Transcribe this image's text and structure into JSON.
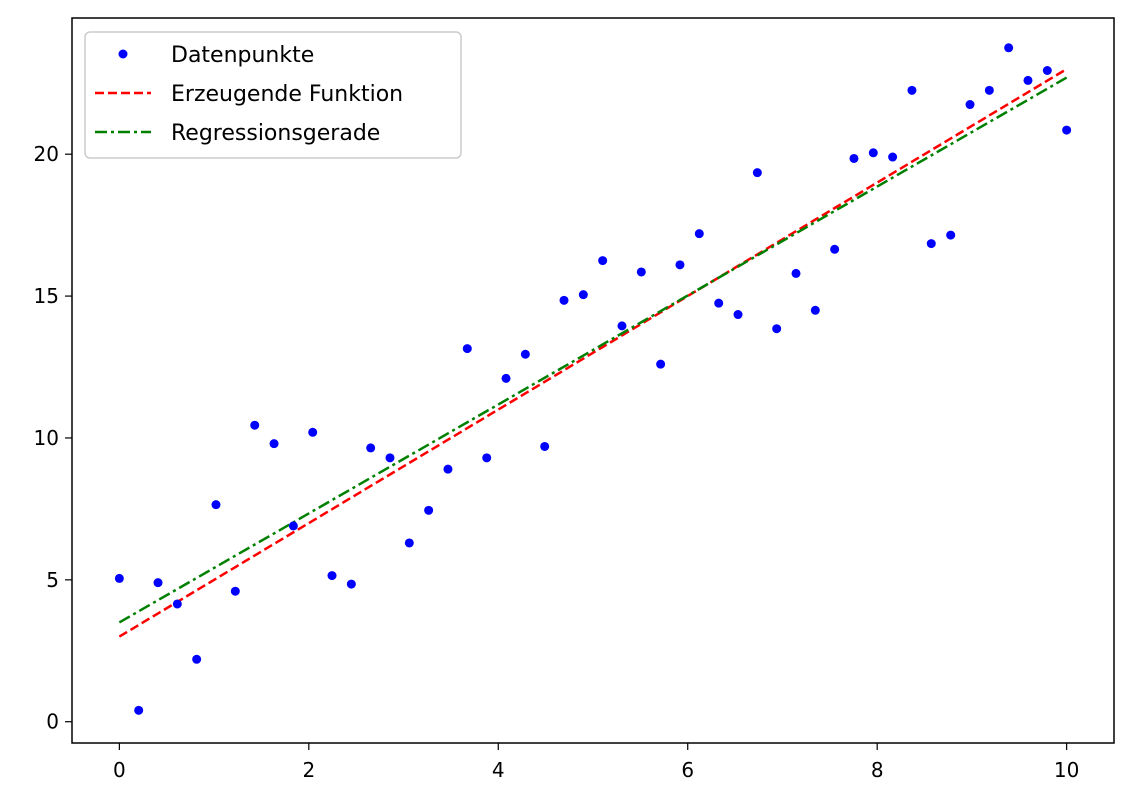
{
  "chart_data": {
    "type": "scatter",
    "xlim": [
      -0.5,
      10.5
    ],
    "ylim": [
      -0.75,
      24.8
    ],
    "xticks": [
      0,
      2,
      4,
      6,
      8,
      10
    ],
    "yticks": [
      0,
      5,
      10,
      15,
      20
    ],
    "grid": false,
    "legend_position": "top-left",
    "series": [
      {
        "name": "Datenpunkte",
        "kind": "points",
        "color": "#0000ff",
        "x": [
          0.0,
          0.204,
          0.408,
          0.612,
          0.816,
          1.02,
          1.224,
          1.429,
          1.633,
          1.837,
          2.041,
          2.245,
          2.449,
          2.653,
          2.857,
          3.061,
          3.265,
          3.469,
          3.673,
          3.878,
          4.082,
          4.286,
          4.49,
          4.694,
          4.898,
          5.102,
          5.306,
          5.51,
          5.714,
          5.918,
          6.122,
          6.327,
          6.531,
          6.735,
          6.939,
          7.143,
          7.347,
          7.551,
          7.755,
          7.959,
          8.163,
          8.367,
          8.571,
          8.776,
          8.98,
          9.184,
          9.388,
          9.592,
          9.796,
          10.0
        ],
        "y": [
          5.05,
          0.4,
          4.9,
          4.15,
          2.2,
          7.65,
          4.6,
          10.45,
          9.8,
          6.9,
          10.2,
          5.15,
          4.85,
          9.65,
          9.3,
          6.3,
          7.45,
          8.9,
          13.15,
          9.3,
          12.1,
          12.95,
          9.7,
          14.85,
          15.05,
          16.25,
          13.95,
          15.85,
          12.6,
          16.1,
          17.2,
          14.75,
          14.35,
          19.35,
          13.85,
          15.8,
          14.5,
          16.65,
          19.85,
          20.05,
          19.9,
          22.25,
          16.85,
          17.15,
          21.75,
          22.25,
          23.75,
          22.6,
          22.95,
          20.85
        ]
      },
      {
        "name": "Erzeugende Funktion",
        "kind": "line",
        "style": "dashed",
        "color": "#ff0000",
        "x": [
          0,
          10
        ],
        "y": [
          3.0,
          23.0
        ]
      },
      {
        "name": "Regressionsgerade",
        "kind": "line",
        "style": "dashdot",
        "color": "#008000",
        "x": [
          0,
          10
        ],
        "y": [
          3.5,
          22.7
        ]
      }
    ]
  }
}
